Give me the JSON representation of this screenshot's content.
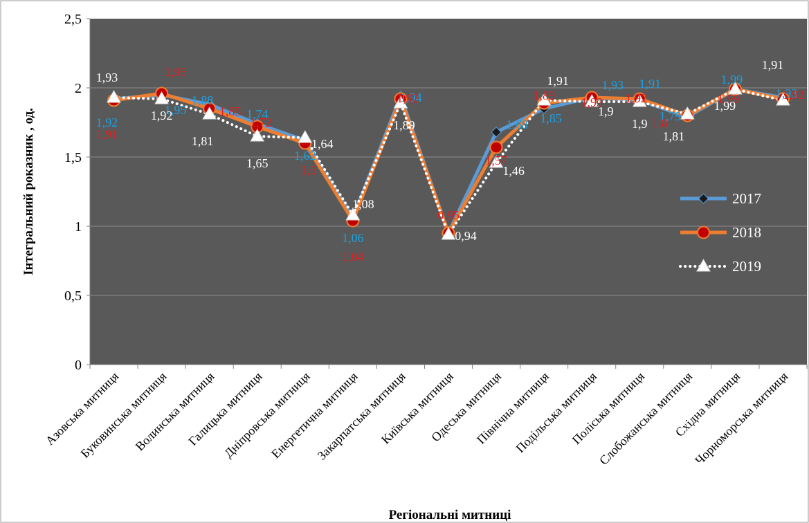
{
  "chart_data": {
    "type": "line",
    "title": "",
    "xlabel": "Регіональні митниці",
    "ylabel": "Інтегральний рокaзник , од.",
    "ylim": [
      0,
      2.5
    ],
    "yticks": [
      "0",
      "0,5",
      "1",
      "1,5",
      "2",
      "2,5"
    ],
    "ytick_values": [
      0,
      0.5,
      1,
      1.5,
      2,
      2.5
    ],
    "grid": true,
    "legend": "right",
    "categories": [
      "Азовська митниця",
      "Буковинська митниця",
      "Волинська митниця",
      "Галицька митниця",
      "Дніпровська митниця",
      "Енергетична митниця",
      "Закарпатська митниця",
      "Київська митниця",
      "Одеська митниця",
      "Північна митниця",
      "Подільська митниця",
      "Поліська митниця",
      "Слобожанська митниця",
      "Східна митниця",
      "Чорноморська митниця"
    ],
    "series": [
      {
        "name": "2017",
        "values": [
          1.92,
          1.95,
          1.88,
          1.74,
          1.62,
          1.06,
          1.94,
          0.95,
          1.68,
          1.85,
          1.93,
          1.91,
          1.79,
          1.99,
          1.93
        ],
        "labels": [
          "1,92",
          "1,95",
          "1,88",
          "1,74",
          "1,62",
          "1,06",
          "1,94",
          "",
          "1,68",
          "1,85",
          "1,93",
          "1,91",
          "1,79",
          "1,99",
          "1,93"
        ],
        "color": "#5b9bd5",
        "label_color": "#1ba1e2",
        "marker": "diamond"
      },
      {
        "name": "2018",
        "values": [
          1.91,
          1.96,
          1.85,
          1.72,
          1.6,
          1.04,
          1.92,
          0.95,
          1.57,
          1.89,
          1.93,
          1.92,
          1.8,
          1.99,
          1.92
        ],
        "labels": [
          "1,91",
          "1,96",
          "1,85",
          "1,72",
          "1,6",
          "1,04",
          "1,92",
          "0,95",
          "1,57",
          "1,89",
          "1,93",
          "1,92",
          "1,8",
          "1,99",
          "1,92"
        ],
        "color": "#ed7d31",
        "label_color": "#e02020",
        "marker": "circle"
      },
      {
        "name": "2019",
        "values": [
          1.93,
          1.92,
          1.81,
          1.65,
          1.64,
          1.08,
          1.89,
          0.94,
          1.46,
          1.91,
          1.9,
          1.9,
          1.81,
          1.99,
          1.91
        ],
        "labels": [
          "1,93",
          "1,92",
          "1,81",
          "1,65",
          "1,64",
          "1,08",
          "1,89",
          "0,94",
          "1,46",
          "1,91",
          "1,9",
          "1,9",
          "1,81",
          "1,99",
          "1,91"
        ],
        "color": "#ffffff",
        "label_color_on_white": "#000000",
        "label_color_on_dark": "#ffffff",
        "marker": "triangle"
      }
    ]
  }
}
